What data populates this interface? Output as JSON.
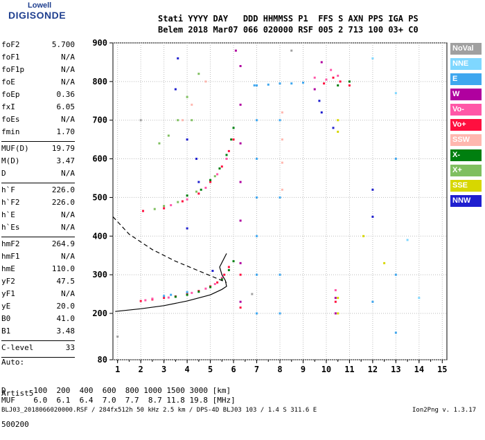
{
  "logo": {
    "line1": "Lowell",
    "line2": "DIGISONDE"
  },
  "header": {
    "labels": "Stati YYYY DAY   DDD HHMMSS P1  FFS S AXN PPS IGA PS",
    "values": "Belem 2018 Mar07 066 020000 RSF 005 2 713 100 03+ C0"
  },
  "params": [
    {
      "name": "foF2",
      "value": "5.700"
    },
    {
      "name": "foF1",
      "value": "N/A"
    },
    {
      "name": "foF1p",
      "value": "N/A"
    },
    {
      "name": "foE",
      "value": "N/A"
    },
    {
      "name": "foEp",
      "value": "0.36"
    },
    {
      "name": "fxI",
      "value": "6.05"
    },
    {
      "name": "foEs",
      "value": "N/A"
    },
    {
      "name": "fmin",
      "value": "1.70"
    },
    {
      "name": "MUF(D)",
      "value": "19.79"
    },
    {
      "name": "M(D)",
      "value": "3.47"
    },
    {
      "name": "D",
      "value": "N/A"
    },
    {
      "name": "h`F",
      "value": "226.0"
    },
    {
      "name": "h`F2",
      "value": "226.0"
    },
    {
      "name": "h`E",
      "value": "N/A"
    },
    {
      "name": "h`Es",
      "value": "N/A"
    },
    {
      "name": "hmF2",
      "value": "264.9"
    },
    {
      "name": "hmF1",
      "value": "N/A"
    },
    {
      "name": "hmE",
      "value": "110.0"
    },
    {
      "name": "yF2",
      "value": "47.5"
    },
    {
      "name": "yF1",
      "value": "N/A"
    },
    {
      "name": "yE",
      "value": "20.0"
    },
    {
      "name": "B0",
      "value": "41.0"
    },
    {
      "name": "B1",
      "value": "3.48"
    },
    {
      "name": "C-level",
      "value": "33"
    }
  ],
  "auto": {
    "line1": "Auto:",
    "line2": "Artist5",
    "line3": "500200"
  },
  "legend": [
    {
      "label": "NoVal",
      "color": "#a0a0a0"
    },
    {
      "label": "NNE",
      "color": "#7fd7ff"
    },
    {
      "label": "E",
      "color": "#3fa7ef"
    },
    {
      "label": "W",
      "color": "#b0009f"
    },
    {
      "label": "Vo-",
      "color": "#ff57a7"
    },
    {
      "label": "Vo+",
      "color": "#ff0f3f"
    },
    {
      "label": "SSW",
      "color": "#ffb7af"
    },
    {
      "label": "X-",
      "color": "#007f0f"
    },
    {
      "label": "X+",
      "color": "#7fbf5f"
    },
    {
      "label": "SSE",
      "color": "#d7d700"
    },
    {
      "label": "NNW",
      "color": "#1f1fcf"
    }
  ],
  "footer": {
    "d_row": "D      100  200  400  600  800 1000 1500 3000 [km]",
    "muf_row": "MUF    6.0  6.1  6.4  7.0  7.7  8.7 11.8 19.8 [MHz]",
    "info": "BLJ03_2018066020000.RSF / 284fx512h 50 kHz 2.5 km / DPS-4D BLJ03 103 / 1.4 S 311.6 E",
    "version": "Ion2Png v. 1.3.17"
  },
  "chart_data": {
    "type": "scatter",
    "x_ticks": [
      1,
      2,
      3,
      4,
      5,
      6,
      7,
      8,
      9,
      10,
      11,
      12,
      13,
      14,
      15
    ],
    "y_ticks": [
      80,
      200,
      300,
      400,
      500,
      600,
      700,
      800,
      900
    ],
    "xlim": [
      0.8,
      15.2
    ],
    "ylim": [
      80,
      900
    ],
    "grid": true,
    "legend_placement": "right",
    "series": [
      {
        "name": "Vo+",
        "color": "#ff0f3f",
        "points": [
          [
            2.0,
            232
          ],
          [
            2.5,
            236
          ],
          [
            3.0,
            240
          ],
          [
            3.5,
            244
          ],
          [
            4.0,
            250
          ],
          [
            4.5,
            258
          ],
          [
            5.0,
            270
          ],
          [
            5.3,
            280
          ],
          [
            5.6,
            300
          ],
          [
            5.8,
            320
          ],
          [
            2.1,
            465
          ],
          [
            3.0,
            472
          ],
          [
            3.8,
            490
          ],
          [
            4.5,
            510
          ],
          [
            5.0,
            540
          ],
          [
            5.5,
            580
          ],
          [
            5.8,
            620
          ],
          [
            6.0,
            650
          ],
          [
            9.9,
            795
          ],
          [
            10.3,
            810
          ],
          [
            10.6,
            800
          ],
          [
            11.0,
            790
          ],
          [
            6.3,
            215
          ],
          [
            6.3,
            300
          ],
          [
            10.4,
            230
          ]
        ]
      },
      {
        "name": "Vo-",
        "color": "#ff57a7",
        "points": [
          [
            2.2,
            234
          ],
          [
            3.2,
            241
          ],
          [
            4.2,
            253
          ],
          [
            4.8,
            264
          ],
          [
            5.2,
            276
          ],
          [
            5.5,
            292
          ],
          [
            3.3,
            480
          ],
          [
            4.0,
            495
          ],
          [
            4.8,
            525
          ],
          [
            5.3,
            560
          ],
          [
            5.7,
            600
          ],
          [
            10.0,
            805
          ],
          [
            10.5,
            815
          ],
          [
            10.2,
            830
          ],
          [
            9.5,
            810
          ],
          [
            2.5,
            238
          ],
          [
            10.4,
            260
          ]
        ]
      },
      {
        "name": "X-",
        "color": "#007f0f",
        "points": [
          [
            3.5,
            243
          ],
          [
            4.0,
            248
          ],
          [
            4.5,
            256
          ],
          [
            5.0,
            268
          ],
          [
            5.5,
            288
          ],
          [
            5.8,
            312
          ],
          [
            6.0,
            335
          ],
          [
            4.0,
            505
          ],
          [
            4.6,
            520
          ],
          [
            5.0,
            545
          ],
          [
            5.4,
            575
          ],
          [
            5.7,
            610
          ],
          [
            5.9,
            650
          ],
          [
            6.0,
            680
          ],
          [
            10.5,
            790
          ],
          [
            11.0,
            800
          ]
        ]
      },
      {
        "name": "X+",
        "color": "#7fbf5f",
        "points": [
          [
            3.0,
            478
          ],
          [
            3.6,
            488
          ],
          [
            4.4,
            515
          ],
          [
            5.2,
            555
          ],
          [
            2.8,
            640
          ],
          [
            3.2,
            660
          ],
          [
            3.6,
            700
          ],
          [
            4.0,
            760
          ],
          [
            4.5,
            820
          ],
          [
            2.6,
            470
          ],
          [
            4.2,
            700
          ]
        ]
      },
      {
        "name": "E",
        "color": "#3fa7ef",
        "points": [
          [
            7.0,
            790
          ],
          [
            7.5,
            792
          ],
          [
            8.0,
            795
          ],
          [
            8.5,
            795
          ],
          [
            9.0,
            797
          ],
          [
            6.9,
            790
          ],
          [
            7.0,
            700
          ],
          [
            7.0,
            600
          ],
          [
            7.0,
            500
          ],
          [
            7.0,
            400
          ],
          [
            7.0,
            300
          ],
          [
            7.0,
            200
          ],
          [
            8.0,
            700
          ],
          [
            8.0,
            500
          ],
          [
            8.0,
            300
          ],
          [
            8.0,
            200
          ],
          [
            12.0,
            230
          ],
          [
            13.0,
            600
          ],
          [
            13.0,
            300
          ],
          [
            13.0,
            150
          ],
          [
            3.0,
            245
          ],
          [
            3.3,
            248
          ],
          [
            4.0,
            255
          ]
        ]
      },
      {
        "name": "W",
        "color": "#b0009f",
        "points": [
          [
            6.3,
            230
          ],
          [
            6.3,
            330
          ],
          [
            6.3,
            440
          ],
          [
            6.3,
            540
          ],
          [
            6.3,
            640
          ],
          [
            6.3,
            740
          ],
          [
            6.3,
            840
          ],
          [
            6.1,
            880
          ],
          [
            10.4,
            200
          ],
          [
            10.4,
            240
          ],
          [
            9.5,
            780
          ],
          [
            9.8,
            850
          ]
        ]
      },
      {
        "name": "SSW",
        "color": "#ffb7af",
        "points": [
          [
            8.1,
            720
          ],
          [
            8.1,
            650
          ],
          [
            8.1,
            590
          ],
          [
            8.1,
            520
          ],
          [
            3.8,
            700
          ],
          [
            4.2,
            740
          ],
          [
            4.8,
            800
          ]
        ]
      },
      {
        "name": "SSE",
        "color": "#d7d700",
        "points": [
          [
            10.5,
            240
          ],
          [
            10.5,
            200
          ],
          [
            10.5,
            670
          ],
          [
            10.5,
            700
          ],
          [
            11.6,
            400
          ],
          [
            12.5,
            330
          ]
        ]
      },
      {
        "name": "NNW",
        "color": "#1f1fcf",
        "points": [
          [
            3.5,
            780
          ],
          [
            3.6,
            860
          ],
          [
            4.0,
            650
          ],
          [
            4.4,
            600
          ],
          [
            4.5,
            540
          ],
          [
            9.8,
            720
          ],
          [
            9.7,
            750
          ],
          [
            12.0,
            450
          ],
          [
            12.0,
            520
          ],
          [
            10.3,
            680
          ],
          [
            5.1,
            310
          ],
          [
            4.0,
            420
          ]
        ]
      },
      {
        "name": "NNE",
        "color": "#7fd7ff",
        "points": [
          [
            12.0,
            860
          ],
          [
            13.0,
            770
          ],
          [
            14.0,
            240
          ],
          [
            13.5,
            390
          ]
        ]
      },
      {
        "name": "NoVal",
        "color": "#a0a0a0",
        "points": [
          [
            2.0,
            700
          ],
          [
            6.8,
            250
          ],
          [
            8.5,
            880
          ],
          [
            1.0,
            140
          ]
        ]
      }
    ],
    "profile_solid": [
      [
        0.9,
        205
      ],
      [
        2.0,
        212
      ],
      [
        3.0,
        220
      ],
      [
        4.0,
        232
      ],
      [
        5.0,
        248
      ],
      [
        5.5,
        262
      ],
      [
        5.7,
        270
      ],
      [
        5.65,
        285
      ],
      [
        5.5,
        300
      ],
      [
        5.4,
        320
      ],
      [
        5.7,
        355
      ]
    ],
    "profile_dashed": [
      [
        0.8,
        450
      ],
      [
        1.5,
        405
      ],
      [
        2.5,
        365
      ],
      [
        3.5,
        335
      ],
      [
        4.5,
        310
      ],
      [
        5.3,
        290
      ],
      [
        5.7,
        280
      ]
    ]
  }
}
